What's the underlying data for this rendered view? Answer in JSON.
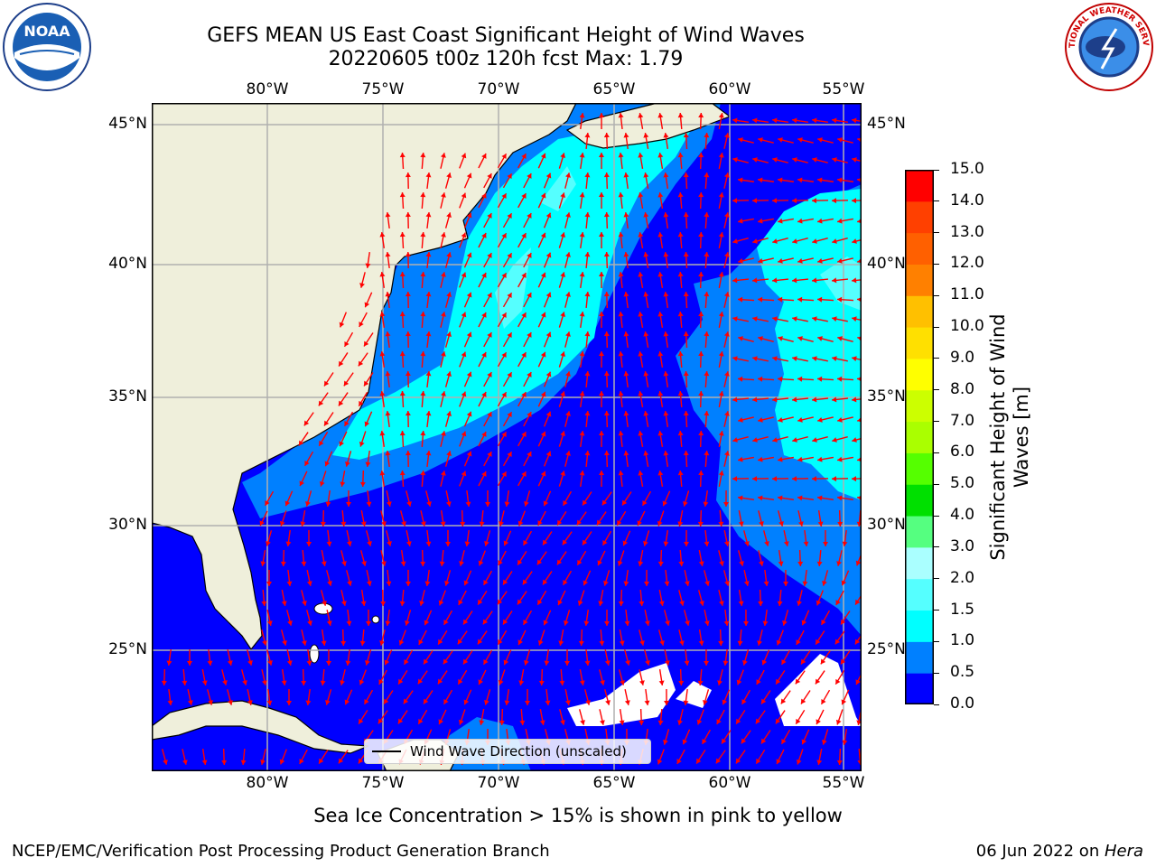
{
  "header": {
    "title_line1": "GEFS MEAN US East Coast Significant Height of Wind Waves",
    "title_line2": "20220605 t00z 120h fcst   Max: 1.79"
  },
  "logos": {
    "left": {
      "icon": "noaa-logo-icon",
      "text": "NOAA"
    },
    "right": {
      "icon": "nws-logo-icon",
      "text": "NATIONAL WEATHER SERVICE"
    }
  },
  "map": {
    "lon_labels": [
      "80°W",
      "75°W",
      "70°W",
      "65°W",
      "60°W",
      "55°W"
    ],
    "lat_labels": [
      "45°N",
      "40°N",
      "35°N",
      "30°N",
      "25°N"
    ],
    "legend_label": "Wind Wave Direction (unscaled)",
    "colors": {
      "land": "#efefdb",
      "band_0_05": "#0000ff",
      "band_05_1": "#0080ff",
      "band_1_15": "#00ffff",
      "band_15_2": "#55ffff",
      "arrow": "#ff0000",
      "grid": "#b0b0b0"
    }
  },
  "colorbar": {
    "label": "Significant Height of Wind Waves [m]",
    "ticks": [
      "0.0",
      "0.5",
      "1.0",
      "1.5",
      "2.0",
      "3.0",
      "4.0",
      "5.0",
      "6.0",
      "7.0",
      "8.0",
      "9.0",
      "10.0",
      "11.0",
      "12.0",
      "13.0",
      "14.0",
      "15.0"
    ],
    "colors": [
      "#0000ff",
      "#0080ff",
      "#00ffff",
      "#55ffff",
      "#aaffff",
      "#55ff80",
      "#00e000",
      "#55ff00",
      "#aaff00",
      "#ccff00",
      "#ffff00",
      "#ffe000",
      "#ffc000",
      "#ff8000",
      "#ff6000",
      "#ff4000",
      "#ff0000"
    ]
  },
  "caption": "Sea Ice Concentration > 15% is shown in pink to yellow",
  "footer": {
    "left": "NCEP/EMC/Verification Post Processing Product Generation Branch",
    "right_date": "06 Jun 2022 on ",
    "right_host": "Hera"
  }
}
